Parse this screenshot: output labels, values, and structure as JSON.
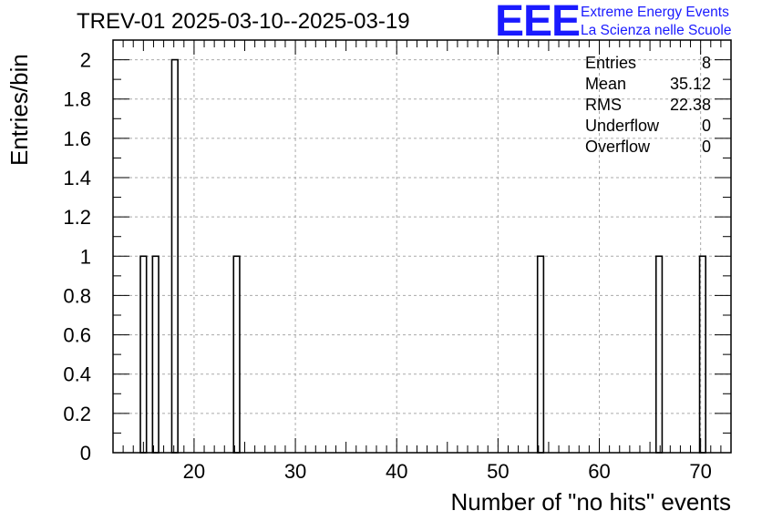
{
  "title": "TREV-01 2025-03-10--2025-03-19",
  "logo": {
    "mark": "EEE",
    "line1": "Extreme Energy Events",
    "line2": "La Scienza nelle Scuole",
    "color": "#1a1aff"
  },
  "stats": [
    {
      "label": "Entries",
      "value": "8"
    },
    {
      "label": "Mean",
      "value": "35.12"
    },
    {
      "label": "RMS",
      "value": "22.38"
    },
    {
      "label": "Underflow",
      "value": "0"
    },
    {
      "label": "Overflow",
      "value": "0"
    }
  ],
  "chart_data": {
    "type": "bar",
    "title": "TREV-01 2025-03-10--2025-03-19",
    "xlabel": "Number of \"no hits\" events",
    "ylabel": "Entries/bin",
    "xlim": [
      12,
      73
    ],
    "ylim": [
      0,
      2.1
    ],
    "bin_width": 0.6,
    "grid": true,
    "xticks": [
      20,
      30,
      40,
      50,
      60,
      70
    ],
    "yticks": [
      0,
      0.2,
      0.4,
      0.6,
      0.8,
      1,
      1.2,
      1.4,
      1.6,
      1.8,
      2
    ],
    "ytick_labels": [
      "0",
      "0.2",
      "0.4",
      "0.6",
      "0.8",
      "1",
      "1.2",
      "1.4",
      "1.6",
      "1.8",
      "2"
    ],
    "bins": [
      {
        "x": 15,
        "value": 1
      },
      {
        "x": 16.2,
        "value": 1
      },
      {
        "x": 18.1,
        "value": 2
      },
      {
        "x": 24.2,
        "value": 1
      },
      {
        "x": 54.2,
        "value": 1
      },
      {
        "x": 65.9,
        "value": 1
      },
      {
        "x": 70.2,
        "value": 1
      }
    ]
  }
}
